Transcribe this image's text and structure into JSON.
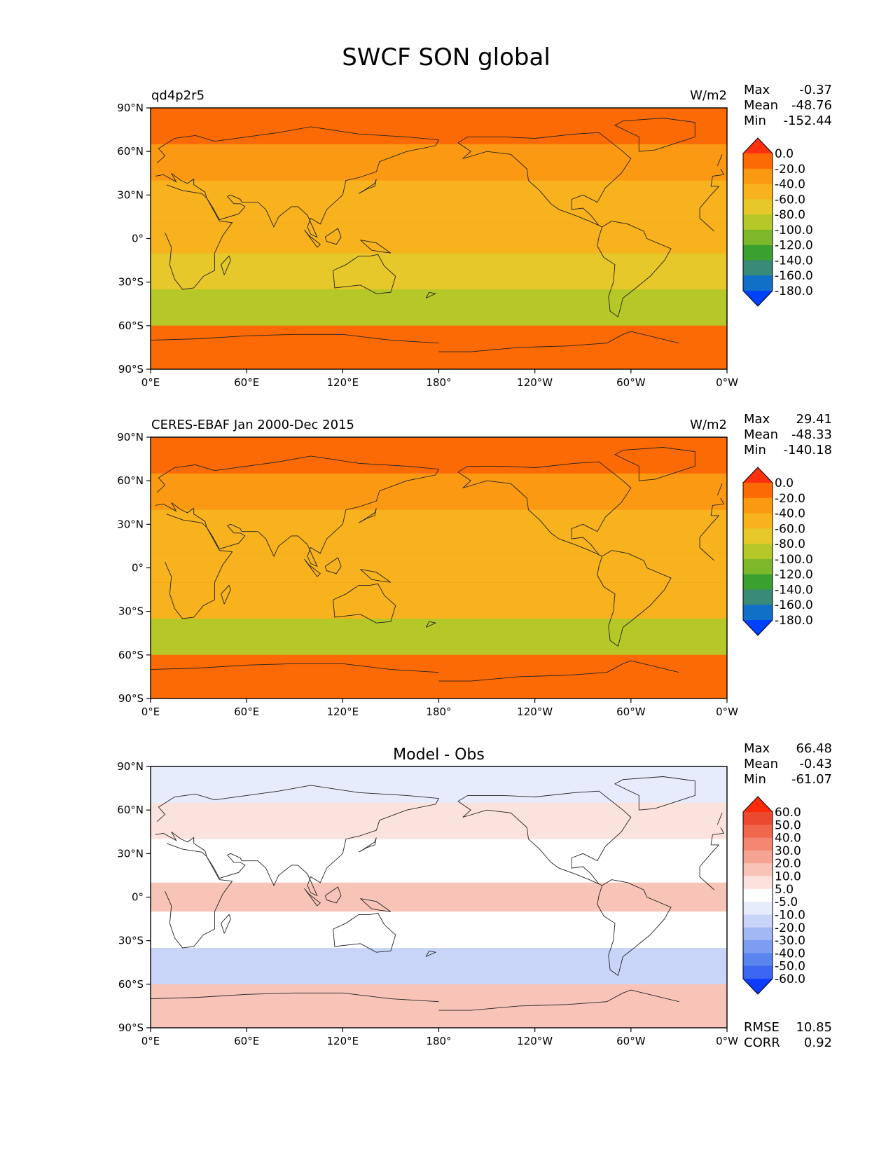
{
  "figure": {
    "title": "SWCF SON global"
  },
  "x_ticks": [
    "0°E",
    "60°E",
    "120°E",
    "180°",
    "120°W",
    "60°W",
    "0°W"
  ],
  "y_ticks": [
    "90°N",
    "60°N",
    "30°N",
    "0°",
    "30°S",
    "60°S",
    "90°S"
  ],
  "stat_labels": {
    "max": "Max",
    "mean": "Mean",
    "min": "Min",
    "rmse": "RMSE",
    "corr": "CORR"
  },
  "colors": {
    "abs": [
      "#0040ff",
      "#1070c8",
      "#3a8a78",
      "#3aa030",
      "#7cb82a",
      "#b5c828",
      "#e6c82a",
      "#f7b21e",
      "#fb9a12",
      "#fc6a06",
      "#ff3010"
    ],
    "diff": [
      "#0b3cff",
      "#3a66f0",
      "#5a84ee",
      "#7c9df0",
      "#a2b8f4",
      "#c8d5f8",
      "#e6ecfb",
      "#ffffff",
      "#fbe2dc",
      "#f8c4b8",
      "#f6a595",
      "#f48672",
      "#f0664e",
      "#ec4a30",
      "#ff2a0a"
    ]
  },
  "panels": [
    {
      "left_title": "qd4p2r5",
      "center_title": "",
      "units": "W/m2",
      "stats": {
        "max": "-0.37",
        "mean": "-48.76",
        "min": "-152.44"
      },
      "colorbar": {
        "type": "abs",
        "labels": [
          "0.0",
          "-20.0",
          "-40.0",
          "-60.0",
          "-80.0",
          "-100.0",
          "-120.0",
          "-140.0",
          "-160.0",
          "-180.0"
        ]
      }
    },
    {
      "left_title": "CERES-EBAF Jan 2000-Dec 2015",
      "center_title": "",
      "units": "W/m2",
      "stats": {
        "max": "29.41",
        "mean": "-48.33",
        "min": "-140.18"
      },
      "colorbar": {
        "type": "abs",
        "labels": [
          "0.0",
          "-20.0",
          "-40.0",
          "-60.0",
          "-80.0",
          "-100.0",
          "-120.0",
          "-140.0",
          "-160.0",
          "-180.0"
        ]
      }
    },
    {
      "left_title": "",
      "center_title": "Model - Obs",
      "units": "",
      "stats": {
        "max": "66.48",
        "mean": "-0.43",
        "min": "-61.07",
        "rmse": "10.85",
        "corr": "0.92"
      },
      "colorbar": {
        "type": "diff",
        "labels": [
          "60.0",
          "50.0",
          "40.0",
          "30.0",
          "20.0",
          "10.0",
          "5.0",
          "-5.0",
          "-10.0",
          "-20.0",
          "-30.0",
          "-40.0",
          "-50.0",
          "-60.0"
        ]
      }
    }
  ],
  "chart_data": [
    {
      "type": "heatmap",
      "title": "qd4p2r5",
      "units": "W/m2",
      "x_range": [
        "0°E",
        "0°W"
      ],
      "y_range": [
        "90°S",
        "90°N"
      ],
      "levels": [
        0,
        -20,
        -40,
        -60,
        -80,
        -100,
        -120,
        -140,
        -160,
        -180
      ],
      "max": -0.37,
      "mean": -48.76,
      "min": -152.44,
      "zonal_bands": [
        {
          "lat": [
            65,
            90
          ],
          "value": -20
        },
        {
          "lat": [
            40,
            65
          ],
          "value": -40
        },
        {
          "lat": [
            10,
            40
          ],
          "value": -50
        },
        {
          "lat": [
            -10,
            10
          ],
          "value": -60
        },
        {
          "lat": [
            -35,
            -10
          ],
          "value": -65
        },
        {
          "lat": [
            -60,
            -35
          ],
          "value": -95
        },
        {
          "lat": [
            -90,
            -60
          ],
          "value": -20
        }
      ]
    },
    {
      "type": "heatmap",
      "title": "CERES-EBAF Jan 2000-Dec 2015",
      "units": "W/m2",
      "x_range": [
        "0°E",
        "0°W"
      ],
      "y_range": [
        "90°S",
        "90°N"
      ],
      "levels": [
        0,
        -20,
        -40,
        -60,
        -80,
        -100,
        -120,
        -140,
        -160,
        -180
      ],
      "max": 29.41,
      "mean": -48.33,
      "min": -140.18,
      "zonal_bands": [
        {
          "lat": [
            65,
            90
          ],
          "value": -20
        },
        {
          "lat": [
            40,
            65
          ],
          "value": -40
        },
        {
          "lat": [
            10,
            40
          ],
          "value": -45
        },
        {
          "lat": [
            -10,
            10
          ],
          "value": -55
        },
        {
          "lat": [
            -35,
            -10
          ],
          "value": -60
        },
        {
          "lat": [
            -60,
            -35
          ],
          "value": -85
        },
        {
          "lat": [
            -90,
            -60
          ],
          "value": -20
        }
      ]
    },
    {
      "type": "heatmap",
      "title": "Model - Obs",
      "x_range": [
        "0°E",
        "0°W"
      ],
      "y_range": [
        "90°S",
        "90°N"
      ],
      "levels": [
        60,
        50,
        40,
        30,
        20,
        10,
        5,
        -5,
        -10,
        -20,
        -30,
        -40,
        -50,
        -60
      ],
      "max": 66.48,
      "mean": -0.43,
      "min": -61.07,
      "rmse": 10.85,
      "corr": 0.92,
      "zonal_bands": [
        {
          "lat": [
            65,
            90
          ],
          "value": -10
        },
        {
          "lat": [
            40,
            65
          ],
          "value": 5
        },
        {
          "lat": [
            10,
            40
          ],
          "value": -5
        },
        {
          "lat": [
            -10,
            10
          ],
          "value": 10
        },
        {
          "lat": [
            -35,
            -10
          ],
          "value": -5
        },
        {
          "lat": [
            -60,
            -35
          ],
          "value": -15
        },
        {
          "lat": [
            -90,
            -60
          ],
          "value": 10
        }
      ]
    }
  ]
}
